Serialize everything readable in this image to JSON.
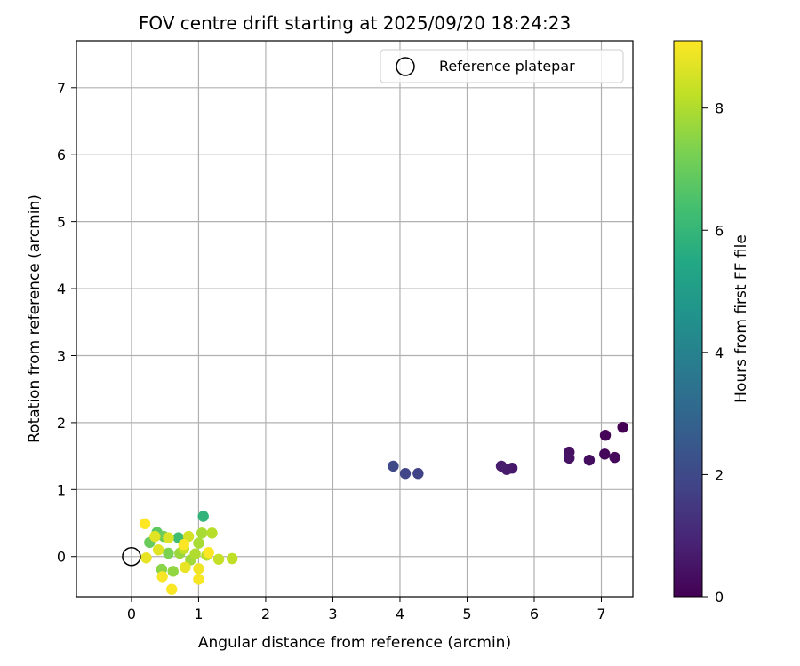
{
  "chart_data": {
    "type": "scatter",
    "title": "FOV centre drift starting at 2025/09/20 18:24:23",
    "xlabel": "Angular distance from reference (arcmin)",
    "ylabel": "Rotation from reference (arcmin)",
    "xlim": [
      -0.82,
      7.47
    ],
    "ylim": [
      -0.6,
      7.7
    ],
    "xticks": [
      "0",
      "1",
      "2",
      "3",
      "4",
      "5",
      "6",
      "7"
    ],
    "yticks": [
      "0",
      "1",
      "2",
      "3",
      "4",
      "5",
      "6",
      "7"
    ],
    "grid": true,
    "legend": {
      "placement": "top-right",
      "entries": [
        "Reference platepar"
      ]
    },
    "reference_point": {
      "x": 0,
      "y": 0
    },
    "colorbar": {
      "label": "Hours from first FF file",
      "colormap": "viridis",
      "range": [
        0,
        9.1
      ],
      "ticks": [
        "0",
        "2",
        "4",
        "6",
        "8"
      ]
    },
    "points": [
      {
        "x": 7.32,
        "y": 1.93,
        "hours": 0.0
      },
      {
        "x": 7.06,
        "y": 1.81,
        "hours": 0.1
      },
      {
        "x": 7.05,
        "y": 1.53,
        "hours": 0.15
      },
      {
        "x": 7.2,
        "y": 1.48,
        "hours": 0.2
      },
      {
        "x": 6.82,
        "y": 1.44,
        "hours": 0.3
      },
      {
        "x": 6.52,
        "y": 1.56,
        "hours": 0.4
      },
      {
        "x": 6.52,
        "y": 1.47,
        "hours": 0.45
      },
      {
        "x": 5.67,
        "y": 1.32,
        "hours": 0.6
      },
      {
        "x": 5.59,
        "y": 1.3,
        "hours": 0.65
      },
      {
        "x": 5.51,
        "y": 1.35,
        "hours": 0.7
      },
      {
        "x": 4.27,
        "y": 1.24,
        "hours": 1.8
      },
      {
        "x": 4.08,
        "y": 1.24,
        "hours": 1.9
      },
      {
        "x": 3.9,
        "y": 1.35,
        "hours": 2.0
      },
      {
        "x": 1.07,
        "y": 0.6,
        "hours": 5.9
      },
      {
        "x": 0.7,
        "y": 0.28,
        "hours": 6.3
      },
      {
        "x": 0.38,
        "y": 0.36,
        "hours": 6.8
      },
      {
        "x": 0.27,
        "y": 0.21,
        "hours": 7.0
      },
      {
        "x": 0.48,
        "y": 0.3,
        "hours": 7.1
      },
      {
        "x": 0.55,
        "y": 0.05,
        "hours": 7.3
      },
      {
        "x": 0.45,
        "y": -0.19,
        "hours": 7.5
      },
      {
        "x": 0.62,
        "y": -0.22,
        "hours": 7.6
      },
      {
        "x": 0.72,
        "y": 0.05,
        "hours": 7.7
      },
      {
        "x": 0.88,
        "y": -0.05,
        "hours": 7.8
      },
      {
        "x": 1.05,
        "y": 0.35,
        "hours": 7.9
      },
      {
        "x": 1.0,
        "y": 0.2,
        "hours": 7.9
      },
      {
        "x": 0.95,
        "y": 0.04,
        "hours": 8.0
      },
      {
        "x": 1.2,
        "y": 0.35,
        "hours": 8.1
      },
      {
        "x": 1.12,
        "y": 0.02,
        "hours": 8.1
      },
      {
        "x": 1.5,
        "y": -0.03,
        "hours": 8.2
      },
      {
        "x": 1.3,
        "y": -0.04,
        "hours": 8.3
      },
      {
        "x": 0.78,
        "y": 0.12,
        "hours": 8.3
      },
      {
        "x": 0.85,
        "y": 0.3,
        "hours": 8.5
      },
      {
        "x": 0.55,
        "y": 0.28,
        "hours": 8.6
      },
      {
        "x": 0.35,
        "y": 0.3,
        "hours": 8.7
      },
      {
        "x": 0.4,
        "y": 0.1,
        "hours": 8.7
      },
      {
        "x": 0.22,
        "y": -0.02,
        "hours": 8.8
      },
      {
        "x": 0.8,
        "y": -0.16,
        "hours": 8.8
      },
      {
        "x": 1.0,
        "y": -0.18,
        "hours": 8.9
      },
      {
        "x": 1.0,
        "y": -0.34,
        "hours": 9.0
      },
      {
        "x": 0.46,
        "y": -0.3,
        "hours": 9.0
      },
      {
        "x": 0.6,
        "y": -0.49,
        "hours": 9.05
      },
      {
        "x": 0.2,
        "y": 0.49,
        "hours": 9.1
      },
      {
        "x": 0.78,
        "y": 0.18,
        "hours": 9.1
      },
      {
        "x": 1.15,
        "y": 0.06,
        "hours": 9.1
      }
    ]
  }
}
